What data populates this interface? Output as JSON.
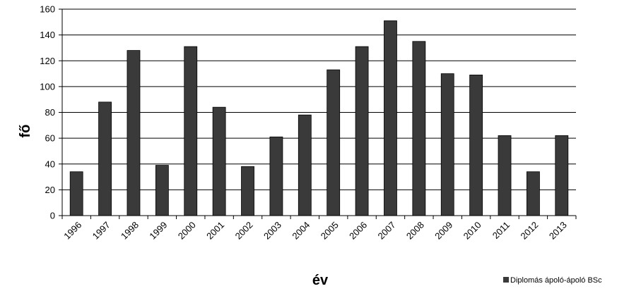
{
  "chart_data": {
    "type": "bar",
    "categories": [
      "1996",
      "1997",
      "1998",
      "1999",
      "2000",
      "2001",
      "2002",
      "2003",
      "2004",
      "2005",
      "2006",
      "2007",
      "2008",
      "2009",
      "2010",
      "2011",
      "2012",
      "2013"
    ],
    "series": [
      {
        "name": "Diplomás ápoló-ápoló BSc",
        "values": [
          34,
          88,
          128,
          39,
          131,
          84,
          38,
          61,
          78,
          113,
          131,
          151,
          135,
          110,
          109,
          62,
          34,
          62
        ]
      }
    ],
    "xlabel": "év",
    "ylabel": "fő",
    "ylim": [
      0,
      160
    ],
    "yticks": [
      0,
      20,
      40,
      60,
      80,
      100,
      120,
      140,
      160
    ],
    "grid": true,
    "legend_position": "bottom-right",
    "colors": {
      "bar": "#3a3a3a",
      "grid": "#000000",
      "axis": "#000000"
    }
  }
}
